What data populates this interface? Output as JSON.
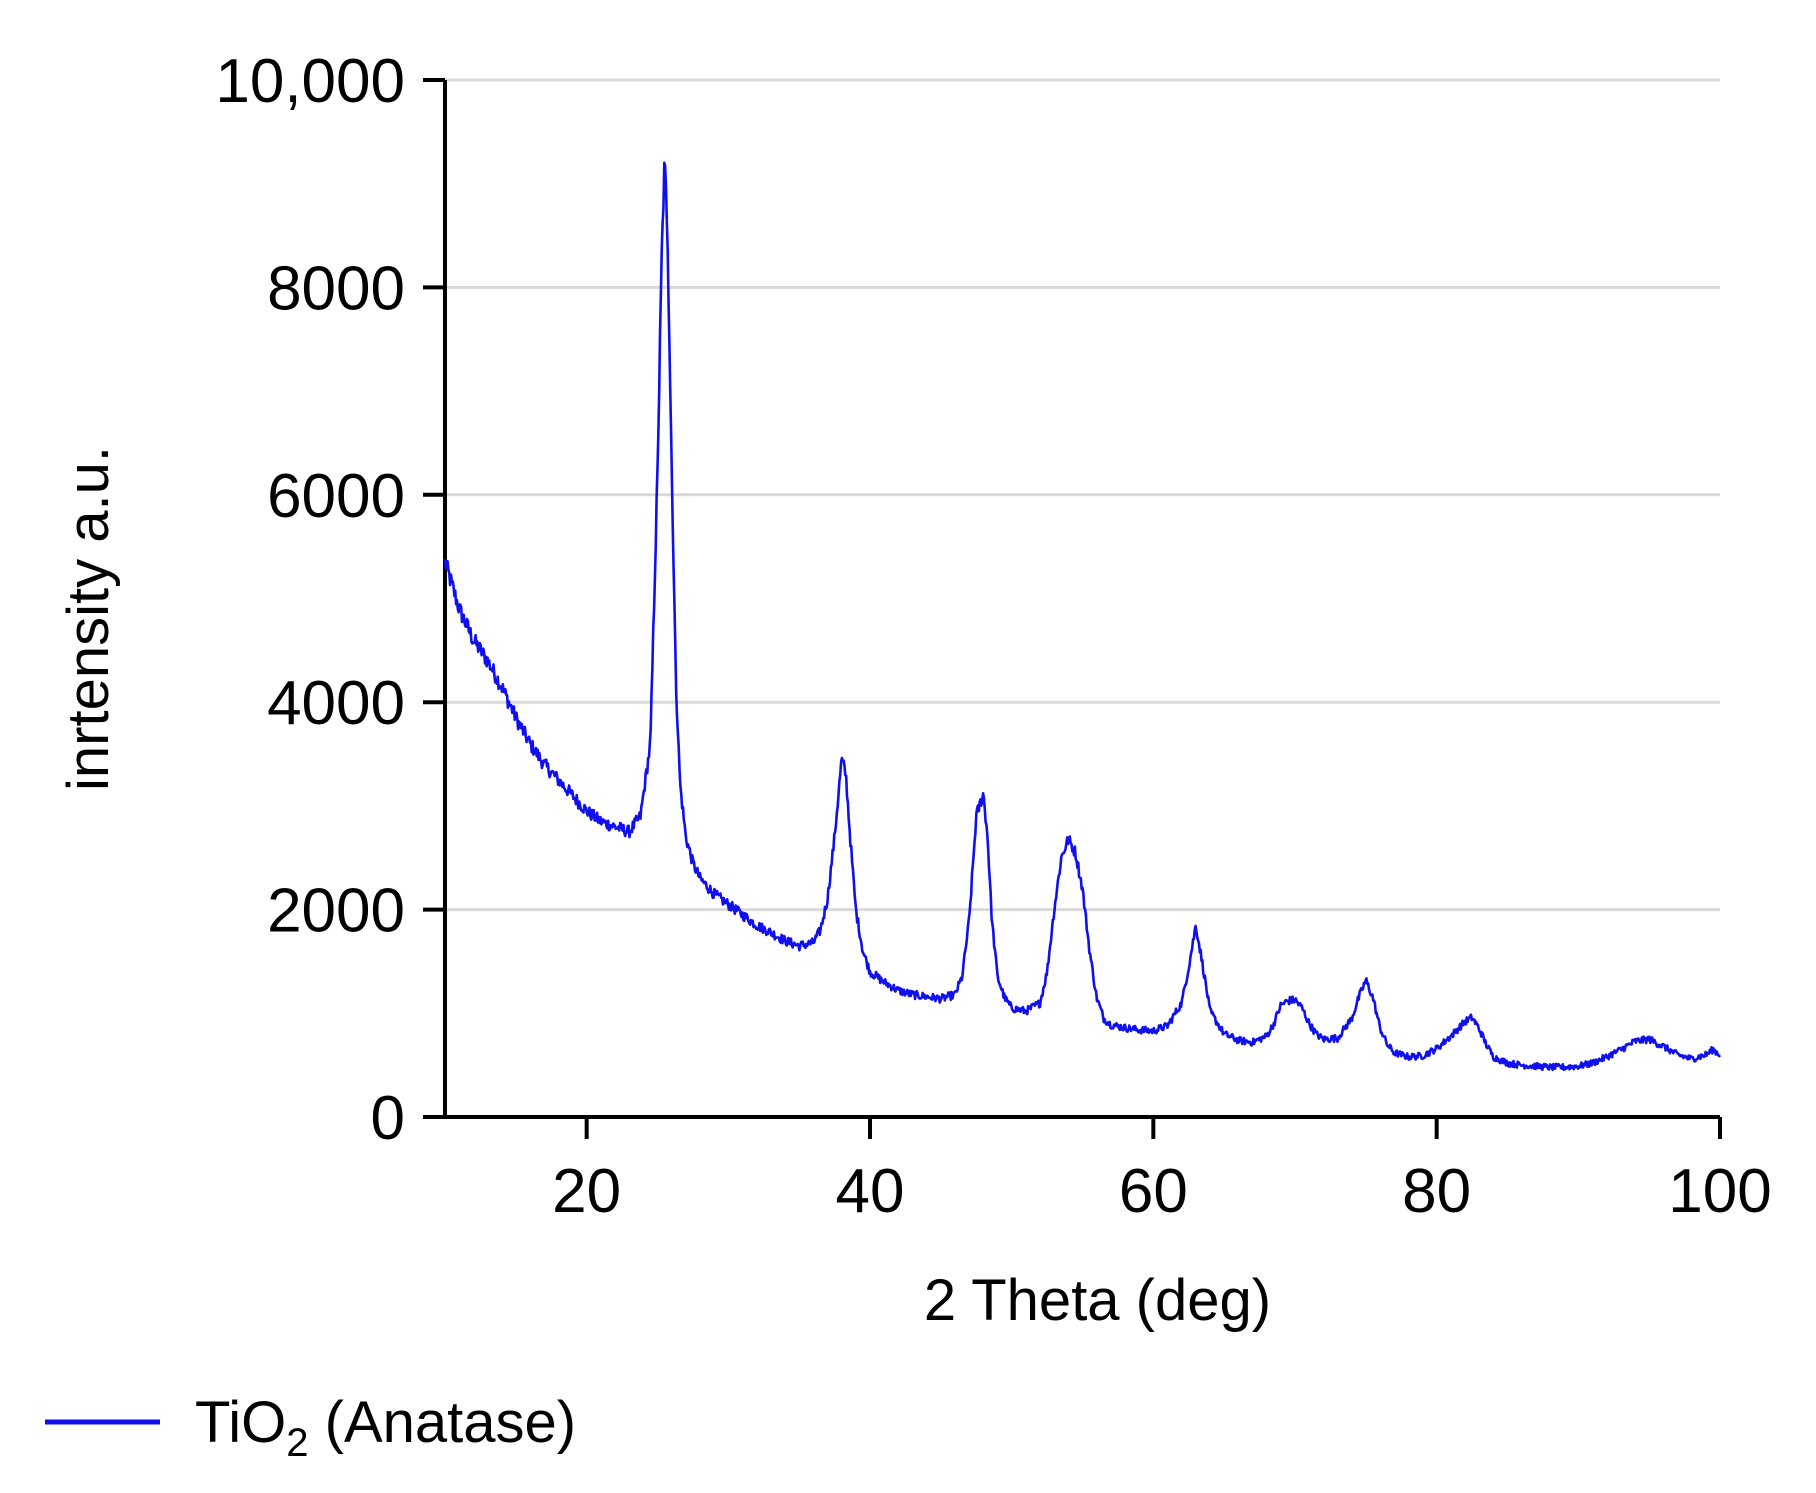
{
  "chart_data": {
    "type": "line",
    "xlabel": "2 Theta (deg)",
    "ylabel": "inrtensity a.u.",
    "xlim": [
      10,
      100
    ],
    "ylim": [
      0,
      10000
    ],
    "x_ticks": [
      20,
      40,
      60,
      80,
      100
    ],
    "x_tick_labels": [
      "20",
      "40",
      "60",
      "80",
      "100"
    ],
    "y_ticks": [
      0,
      2000,
      4000,
      6000,
      8000,
      10000
    ],
    "y_tick_labels": [
      "0",
      "2000",
      "4000",
      "6000",
      "8000",
      "10,000"
    ],
    "grid": "horizontal",
    "legend_position": "bottom-left",
    "series": [
      {
        "name": "TiO2 (Anatase)",
        "name_main": "TiO",
        "name_sub": "2",
        "name_rest": " (Anatase)",
        "color": "#1010ee",
        "x": [
          10,
          11,
          12,
          13,
          14,
          15,
          16,
          17,
          18,
          19,
          20,
          21,
          22,
          23,
          23.8,
          24.5,
          25,
          25.3,
          25.5,
          25.7,
          26,
          26.3,
          26.6,
          27,
          27.5,
          28,
          29,
          30,
          31,
          32,
          33,
          34,
          35,
          36,
          36.5,
          37,
          37.5,
          38,
          38.3,
          38.6,
          39,
          39.5,
          40,
          41,
          42,
          43,
          44,
          45,
          46,
          46.5,
          47,
          47.5,
          48,
          48.3,
          48.6,
          49,
          49.5,
          50,
          51,
          52,
          52.5,
          53,
          53.5,
          54,
          54.5,
          55,
          55.5,
          56,
          56.5,
          57,
          58,
          59,
          60,
          61,
          62,
          62.5,
          63,
          63.5,
          64,
          65,
          66,
          67,
          68,
          68.5,
          69,
          69.5,
          70,
          70.5,
          71,
          71.5,
          72,
          73,
          74,
          74.5,
          75,
          75.5,
          76,
          76.5,
          77,
          78,
          79,
          80,
          81,
          82,
          82.5,
          83,
          83.5,
          84,
          85,
          86,
          87,
          88,
          89,
          90,
          91,
          92,
          93,
          94,
          95,
          96,
          97,
          98,
          99,
          99.5,
          100
        ],
        "values": [
          5350,
          4900,
          4600,
          4400,
          4150,
          3850,
          3600,
          3400,
          3250,
          3100,
          2950,
          2850,
          2800,
          2750,
          2900,
          3600,
          6200,
          8300,
          9200,
          8600,
          6300,
          4200,
          3200,
          2700,
          2450,
          2300,
          2150,
          2050,
          1950,
          1850,
          1780,
          1700,
          1650,
          1680,
          1800,
          2100,
          2700,
          3450,
          3300,
          2700,
          2000,
          1600,
          1400,
          1300,
          1220,
          1180,
          1160,
          1140,
          1180,
          1350,
          1900,
          2900,
          3120,
          2700,
          1900,
          1350,
          1150,
          1050,
          1020,
          1100,
          1400,
          2000,
          2500,
          2680,
          2550,
          2200,
          1600,
          1150,
          950,
          890,
          860,
          840,
          830,
          880,
          1100,
          1450,
          1850,
          1450,
          1020,
          800,
          740,
          720,
          780,
          900,
          1080,
          1120,
          1130,
          1050,
          900,
          800,
          750,
          760,
          950,
          1150,
          1320,
          1150,
          860,
          700,
          620,
          580,
          590,
          660,
          780,
          920,
          960,
          850,
          700,
          580,
          520,
          500,
          490,
          480,
          480,
          490,
          520,
          580,
          650,
          730,
          750,
          680,
          600,
          560,
          600,
          650,
          600
        ]
      }
    ]
  }
}
